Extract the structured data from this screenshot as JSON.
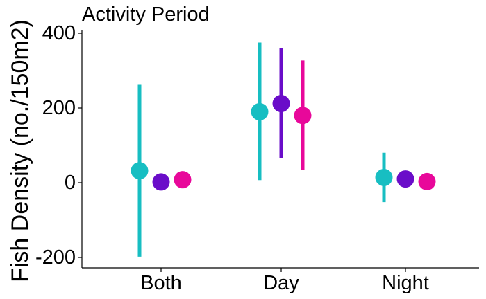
{
  "chart_data": {
    "type": "scatter",
    "title": "Activity Period",
    "xlabel": "",
    "ylabel": "Fish Density (no./150m2)",
    "categories": [
      "Both",
      "Day",
      "Night"
    ],
    "y_ticks": [
      "-200",
      "0",
      "200",
      "400"
    ],
    "ylim": [
      -225,
      400
    ],
    "grid": false,
    "legend": "none",
    "series": [
      {
        "color": "#17BEC2",
        "values": [
          32,
          190,
          14
        ],
        "lower": [
          -198,
          7,
          -52
        ],
        "upper": [
          262,
          375,
          80
        ]
      },
      {
        "color": "#6A0DC9",
        "values": [
          2,
          212,
          10
        ],
        "lower": [
          -3,
          66,
          5
        ],
        "upper": [
          7,
          360,
          15
        ]
      },
      {
        "color": "#E8089A",
        "values": [
          8,
          180,
          3
        ],
        "lower": [
          -15,
          35,
          -2
        ],
        "upper": [
          30,
          327,
          8
        ]
      }
    ]
  }
}
